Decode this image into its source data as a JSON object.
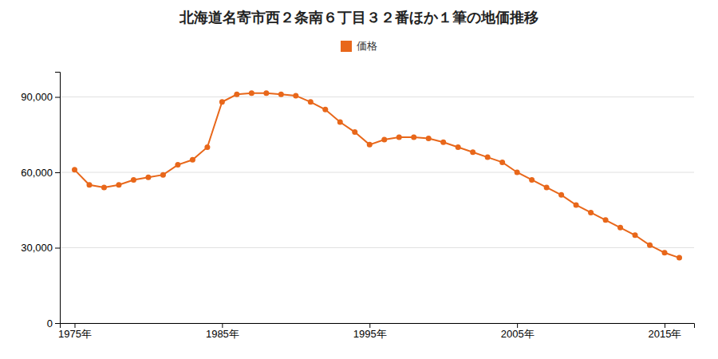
{
  "chart_data": {
    "type": "line",
    "title": "北海道名寄市西２条南６丁目３２番ほか１筆の地価推移",
    "x": [
      1975,
      1976,
      1977,
      1978,
      1979,
      1980,
      1981,
      1982,
      1983,
      1984,
      1985,
      1986,
      1987,
      1988,
      1989,
      1990,
      1991,
      1992,
      1993,
      1994,
      1995,
      1996,
      1997,
      1998,
      1999,
      2000,
      2001,
      2002,
      2003,
      2004,
      2005,
      2006,
      2007,
      2008,
      2009,
      2010,
      2011,
      2012,
      2013,
      2014,
      2015,
      2016
    ],
    "series": [
      {
        "name": "価格",
        "color": "#E8671A",
        "marker": "circle",
        "values": [
          61000,
          55000,
          54000,
          55000,
          57000,
          58000,
          59000,
          63000,
          65000,
          70000,
          88000,
          91000,
          91500,
          91500,
          91000,
          90500,
          88000,
          85000,
          80000,
          76000,
          71000,
          73000,
          74000,
          74000,
          73500,
          72000,
          70000,
          68000,
          66000,
          64000,
          60000,
          57000,
          54000,
          51000,
          47000,
          44000,
          41000,
          38000,
          35000,
          31000,
          28000,
          26000
        ]
      }
    ],
    "xlim": [
      1974,
      2017
    ],
    "xticks": [
      {
        "value": 1975,
        "label": "1975年"
      },
      {
        "value": 1985,
        "label": "1985年"
      },
      {
        "value": 1995,
        "label": "1995年"
      },
      {
        "value": 2005,
        "label": "2005年"
      },
      {
        "value": 2015,
        "label": "2015年"
      }
    ],
    "ylim": [
      0,
      100000
    ],
    "yticks": [
      0,
      {
        "value": 30000,
        "label": "30,000"
      },
      {
        "value": 60000,
        "label": "60,000"
      },
      {
        "value": 90000,
        "label": "90,000"
      }
    ],
    "grid": true,
    "legend": "top"
  }
}
